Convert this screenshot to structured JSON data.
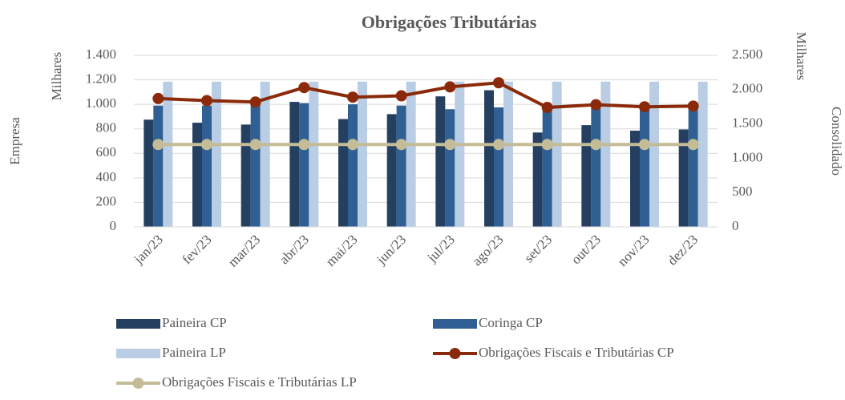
{
  "chart_data": {
    "type": "bar",
    "title": "Obrigações Tributárias",
    "y_label": "Empresa",
    "y_units": "Milhares",
    "y2_label": "Consolidado",
    "y2_units": "Milhares",
    "categories": [
      "jan/23",
      "fev/23",
      "mar/23",
      "abr/23",
      "mai/23",
      "jun/23",
      "jul/23",
      "ago/23",
      "set/23",
      "out/23",
      "nov/23",
      "dez/23"
    ],
    "series": [
      {
        "name": "Paineira CP",
        "color": "#243f60",
        "type": "bar",
        "values": [
          875,
          850,
          835,
          1020,
          880,
          920,
          1065,
          1115,
          770,
          830,
          785,
          795
        ]
      },
      {
        "name": "Coringa CP",
        "color": "#2f5f93",
        "type": "bar",
        "values": [
          990,
          990,
          1000,
          1010,
          1000,
          990,
          960,
          975,
          980,
          980,
          975,
          985
        ]
      },
      {
        "name": "Paineira LP",
        "color": "#b9cde5",
        "type": "bar",
        "values": [
          1185,
          1185,
          1185,
          1185,
          1185,
          1185,
          1185,
          1185,
          1185,
          1185,
          1185,
          1185
        ]
      },
      {
        "name": "Obrigações Fiscais e Tributárias CP",
        "color": "#8b2a0a",
        "type": "line",
        "axis": "y2",
        "values": [
          1870,
          1840,
          1820,
          2030,
          1890,
          1910,
          2040,
          2100,
          1740,
          1780,
          1750,
          1760
        ]
      },
      {
        "name": "Obrigações Fiscais e Tributárias LP",
        "color": "#c4bc96",
        "type": "line",
        "axis": "y2",
        "values": [
          1200,
          1200,
          1200,
          1200,
          1200,
          1200,
          1200,
          1200,
          1200,
          1200,
          1200,
          1200
        ]
      }
    ],
    "ylim": [
      0,
      1400
    ],
    "yticks": [
      0,
      200,
      400,
      600,
      800,
      {
        "value": 1000,
        "label": "1.000"
      },
      {
        "value": 1200,
        "label": "1.200"
      },
      {
        "value": 1400,
        "label": "1.400"
      }
    ],
    "y2lim": [
      0,
      2500
    ],
    "y2ticks": [
      0,
      500,
      {
        "value": 1000,
        "label": "1.000"
      },
      {
        "value": 1500,
        "label": "1.500"
      },
      {
        "value": 2000,
        "label": "2.000"
      },
      {
        "value": 2500,
        "label": "2.500"
      }
    ],
    "grid": true
  }
}
